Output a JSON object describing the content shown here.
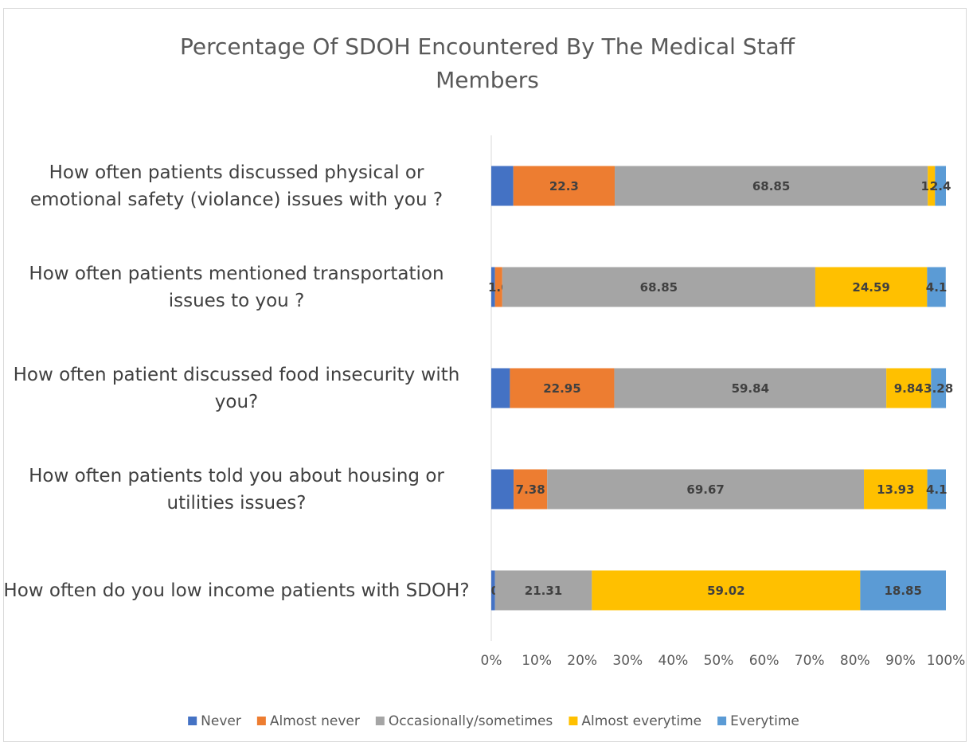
{
  "chart_data": {
    "type": "stacked_barh",
    "title": "Percentage Of SDOH Encountered By The Medical Staff Members",
    "categories": [
      "How often patients discussed physical or emotional safety (violance) issues with you ?",
      "How often patients mentioned transportation issues to you ?",
      "How often patient discussed food insecurity with you?",
      "How often patients told you about housing or utilities issues?",
      "How often do you low income patients with SDOH?"
    ],
    "series": [
      {
        "name": "Never",
        "color": "#4472c4",
        "data_labels": false,
        "values": [
          4.85,
          0.82,
          4.1,
          4.92,
          0.82
        ]
      },
      {
        "name": "Almost never",
        "color": "#ed7d31",
        "data_labels": true,
        "values": [
          22.3,
          1.6,
          22.95,
          7.38,
          0
        ]
      },
      {
        "name": "Occasionally/sometimes",
        "color": "#a5a5a5",
        "data_labels": true,
        "values": [
          68.85,
          68.85,
          59.84,
          69.67,
          21.31
        ]
      },
      {
        "name": "Almost everytime",
        "color": "#ffc000",
        "data_labels": true,
        "values": [
          1.6,
          24.59,
          9.84,
          13.93,
          59.02
        ]
      },
      {
        "name": "Everytime",
        "color": "#5b9bd5",
        "data_labels": true,
        "values": [
          2.4,
          4.1,
          3.28,
          4.1,
          18.85
        ]
      }
    ],
    "xlim": [
      0,
      100
    ],
    "xticks": [
      {
        "value": 0,
        "label": "0%"
      },
      {
        "value": 10,
        "label": "10%"
      },
      {
        "value": 20,
        "label": "20%"
      },
      {
        "value": 30,
        "label": "30%"
      },
      {
        "value": 40,
        "label": "40%"
      },
      {
        "value": 50,
        "label": "50%"
      },
      {
        "value": 60,
        "label": "60%"
      },
      {
        "value": 70,
        "label": "70%"
      },
      {
        "value": 80,
        "label": "80%"
      },
      {
        "value": 90,
        "label": "90%"
      },
      {
        "value": 100,
        "label": "100%"
      }
    ],
    "legend": "bottom"
  }
}
